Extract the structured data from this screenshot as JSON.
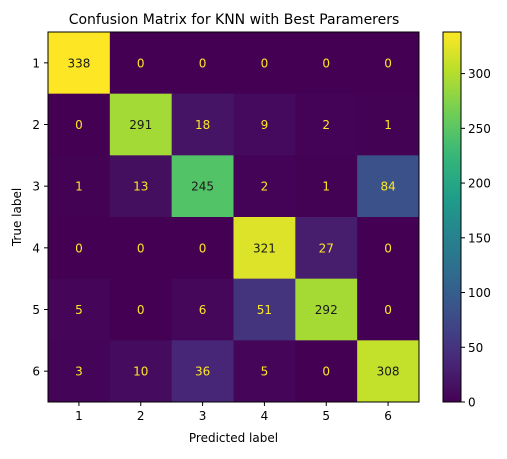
{
  "chart_data": {
    "type": "heatmap",
    "title": "Confusion Matrix for KNN with Best Paramerers",
    "xlabel": "Predicted label",
    "ylabel": "True label",
    "x_categories": [
      "1",
      "2",
      "3",
      "4",
      "5",
      "6"
    ],
    "y_categories": [
      "1",
      "2",
      "3",
      "4",
      "5",
      "6"
    ],
    "matrix": [
      [
        338,
        0,
        0,
        0,
        0,
        0
      ],
      [
        0,
        291,
        18,
        9,
        2,
        1
      ],
      [
        1,
        13,
        245,
        2,
        1,
        84
      ],
      [
        0,
        0,
        0,
        321,
        27,
        0
      ],
      [
        5,
        0,
        6,
        51,
        292,
        0
      ],
      [
        3,
        10,
        36,
        5,
        0,
        308
      ]
    ],
    "colorscale": "viridis",
    "colorbar_range": [
      0,
      338
    ],
    "colorbar_ticks": [
      0,
      50,
      100,
      150,
      200,
      250,
      300
    ],
    "colors": {
      "text_on_dark": "#fde725",
      "text_on_light": "#1a1a1a"
    }
  }
}
